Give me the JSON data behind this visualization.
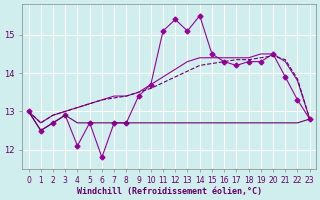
{
  "xlabel": "Windchill (Refroidissement éolien,°C)",
  "x": [
    0,
    1,
    2,
    3,
    4,
    5,
    6,
    7,
    8,
    9,
    10,
    11,
    12,
    13,
    14,
    15,
    16,
    17,
    18,
    19,
    20,
    21,
    22,
    23
  ],
  "line1": [
    13.0,
    12.5,
    12.7,
    12.9,
    12.1,
    12.7,
    11.8,
    12.7,
    12.7,
    13.4,
    13.7,
    15.1,
    15.4,
    15.1,
    15.5,
    14.5,
    14.3,
    14.2,
    14.3,
    14.3,
    14.5,
    13.9,
    13.3,
    12.8
  ],
  "line2": [
    13.0,
    12.5,
    12.7,
    12.9,
    12.7,
    12.7,
    12.7,
    12.7,
    12.7,
    12.7,
    12.7,
    12.7,
    12.7,
    12.7,
    12.7,
    12.7,
    12.7,
    12.7,
    12.7,
    12.7,
    12.7,
    12.7,
    12.7,
    12.8
  ],
  "line3": [
    13.0,
    12.7,
    12.9,
    13.0,
    13.1,
    13.2,
    13.3,
    13.4,
    13.4,
    13.5,
    13.7,
    13.9,
    14.1,
    14.3,
    14.4,
    14.4,
    14.4,
    14.4,
    14.4,
    14.5,
    14.5,
    14.3,
    13.8,
    12.8
  ],
  "line4": [
    13.0,
    12.7,
    12.9,
    13.0,
    13.1,
    13.2,
    13.3,
    13.35,
    13.4,
    13.5,
    13.6,
    13.75,
    13.9,
    14.05,
    14.2,
    14.25,
    14.3,
    14.35,
    14.35,
    14.4,
    14.45,
    14.35,
    13.85,
    12.8
  ],
  "bg_color": "#d0eeee",
  "line_color1": "#990099",
  "line_color2": "#660066",
  "grid_color": "#ffffff",
  "ylim": [
    11.5,
    15.8
  ],
  "yticks": [
    12,
    13,
    14,
    15
  ],
  "xlim": [
    -0.5,
    23.5
  ]
}
